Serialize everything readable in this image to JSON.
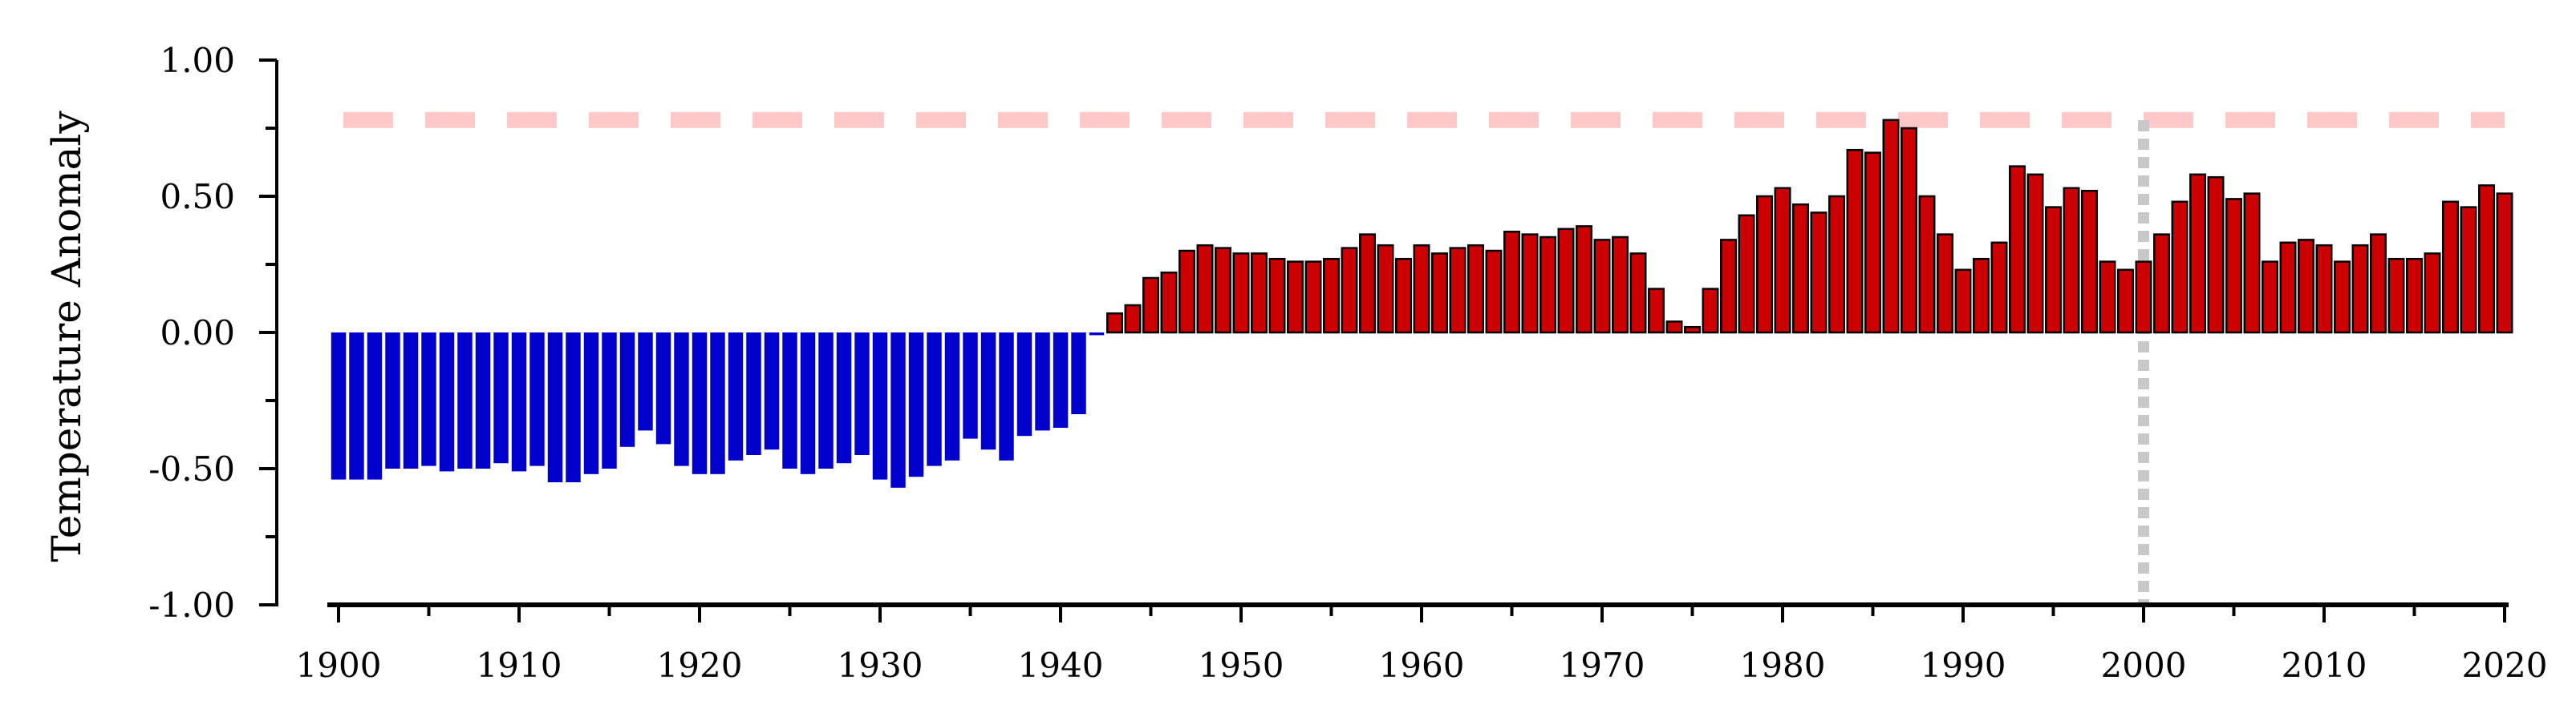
{
  "chart_data": {
    "type": "bar",
    "title": "",
    "xlabel": "",
    "ylabel": "Temperature Anomaly",
    "ylim": [
      -1.0,
      1.0
    ],
    "xlim": [
      1899.5,
      2020.5
    ],
    "yticks": [
      "1.00",
      "0.50",
      "0.00",
      "-0.50",
      "-1.00"
    ],
    "xticks": [
      "1900",
      "1910",
      "1920",
      "1930",
      "1940",
      "1950",
      "1960",
      "1970",
      "1980",
      "1990",
      "2000",
      "2010",
      "2020"
    ],
    "grid": false,
    "legend": "none",
    "colors": {
      "negative": "#0000cc",
      "positive": "#cc0000",
      "positive_edge": "#000000",
      "reference_line": "#ffc8c8",
      "marker_line": "#c8c8c8"
    },
    "reference_line": {
      "y": 0.78,
      "style": "dashed"
    },
    "marker_line": {
      "x": 2000,
      "style": "dotted"
    },
    "x": [
      1900,
      1901,
      1902,
      1903,
      1904,
      1905,
      1906,
      1907,
      1908,
      1909,
      1910,
      1911,
      1912,
      1913,
      1914,
      1915,
      1916,
      1917,
      1918,
      1919,
      1920,
      1921,
      1922,
      1923,
      1924,
      1925,
      1926,
      1927,
      1928,
      1929,
      1930,
      1931,
      1932,
      1933,
      1934,
      1935,
      1936,
      1937,
      1938,
      1939,
      1940,
      1941,
      1942,
      1943,
      1944,
      1945,
      1946,
      1947,
      1948,
      1949,
      1950,
      1951,
      1952,
      1953,
      1954,
      1955,
      1956,
      1957,
      1958,
      1959,
      1960,
      1961,
      1962,
      1963,
      1964,
      1965,
      1966,
      1967,
      1968,
      1969,
      1970,
      1971,
      1972,
      1973,
      1974,
      1975,
      1976,
      1977,
      1978,
      1979,
      1980,
      1981,
      1982,
      1983,
      1984,
      1985,
      1986,
      1987,
      1988,
      1989,
      1990,
      1991,
      1992,
      1993,
      1994,
      1995,
      1996,
      1997,
      1998,
      1999,
      2000,
      2001,
      2002,
      2003,
      2004,
      2005,
      2006,
      2007,
      2008,
      2009,
      2010,
      2011,
      2012,
      2013,
      2014,
      2015,
      2016,
      2017,
      2018,
      2019,
      2020
    ],
    "values": [
      -0.54,
      -0.54,
      -0.54,
      -0.5,
      -0.5,
      -0.49,
      -0.51,
      -0.5,
      -0.5,
      -0.48,
      -0.51,
      -0.49,
      -0.55,
      -0.55,
      -0.52,
      -0.5,
      -0.42,
      -0.36,
      -0.41,
      -0.49,
      -0.52,
      -0.52,
      -0.47,
      -0.45,
      -0.43,
      -0.5,
      -0.52,
      -0.5,
      -0.48,
      -0.45,
      -0.54,
      -0.57,
      -0.53,
      -0.49,
      -0.47,
      -0.39,
      -0.43,
      -0.47,
      -0.38,
      -0.36,
      -0.35,
      -0.3,
      -0.01,
      0.07,
      0.1,
      0.2,
      0.22,
      0.3,
      0.32,
      0.31,
      0.29,
      0.29,
      0.27,
      0.26,
      0.26,
      0.27,
      0.31,
      0.36,
      0.32,
      0.27,
      0.32,
      0.29,
      0.31,
      0.32,
      0.3,
      0.37,
      0.36,
      0.35,
      0.38,
      0.39,
      0.34,
      0.35,
      0.29,
      0.16,
      0.04,
      0.02,
      0.16,
      0.34,
      0.43,
      0.5,
      0.53,
      0.47,
      0.44,
      0.5,
      0.67,
      0.66,
      0.78,
      0.75,
      0.5,
      0.36,
      0.23,
      0.27,
      0.33,
      0.61,
      0.58,
      0.46,
      0.53,
      0.52,
      0.26,
      0.23,
      0.26,
      0.36,
      0.48,
      0.58,
      0.57,
      0.49,
      0.51,
      0.26,
      0.33,
      0.34,
      0.32,
      0.26,
      0.32,
      0.36,
      0.27,
      0.27,
      0.29,
      0.48,
      0.46,
      0.54,
      0.51
    ]
  }
}
